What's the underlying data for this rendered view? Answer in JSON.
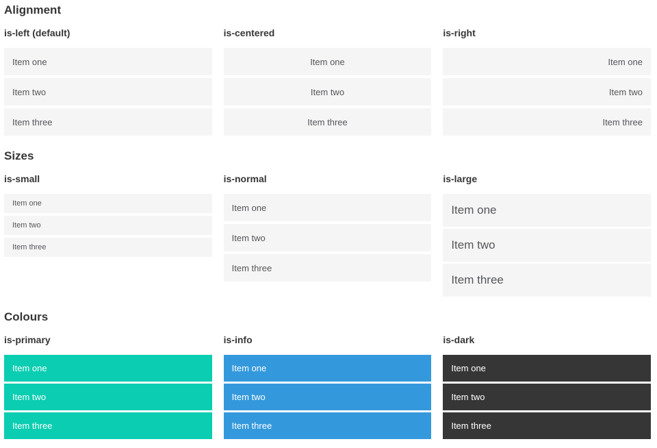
{
  "sections": [
    {
      "title": "Alignment",
      "columns": [
        {
          "heading": "is-left (default)",
          "items": [
            "Item one",
            "Item two",
            "Item three"
          ]
        },
        {
          "heading": "is-centered",
          "items": [
            "Item one",
            "Item two",
            "Item three"
          ]
        },
        {
          "heading": "is-right",
          "items": [
            "Item one",
            "Item two",
            "Item three"
          ]
        }
      ]
    },
    {
      "title": "Sizes",
      "columns": [
        {
          "heading": "is-small",
          "items": [
            "Item one",
            "Item two",
            "Item three"
          ]
        },
        {
          "heading": "is-normal",
          "items": [
            "Item one",
            "Item two",
            "Item three"
          ]
        },
        {
          "heading": "is-large",
          "items": [
            "Item one",
            "Item two",
            "Item three"
          ]
        }
      ]
    },
    {
      "title": "Colours",
      "columns": [
        {
          "heading": "is-primary",
          "items": [
            "Item one",
            "Item two",
            "Item three"
          ]
        },
        {
          "heading": "is-info",
          "items": [
            "Item one",
            "Item two",
            "Item three"
          ]
        },
        {
          "heading": "is-dark",
          "items": [
            "Item one",
            "Item two",
            "Item three"
          ]
        }
      ]
    }
  ],
  "colors": {
    "item_bg": "#f5f5f5",
    "item_text": "#55565a",
    "heading_text": "#363636",
    "primary": "#0acdb1",
    "info": "#3499dc",
    "dark": "#363636",
    "colored_text": "#ffffff"
  }
}
